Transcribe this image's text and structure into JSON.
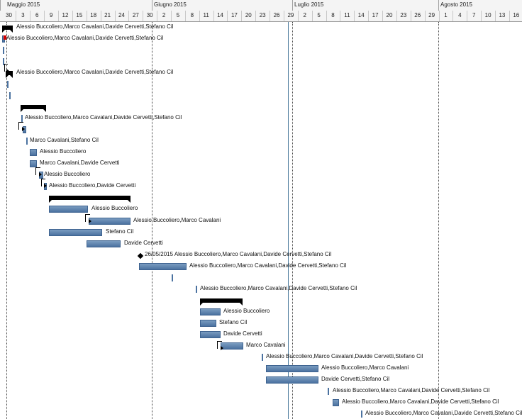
{
  "timeline": {
    "months": [
      "Maggio 2015",
      "Giugno 2015",
      "Luglio 2015",
      "Agosto 2015"
    ],
    "days": [
      "30",
      "3",
      "6",
      "9",
      "12",
      "15",
      "18",
      "21",
      "24",
      "27",
      "30",
      "2",
      "5",
      "8",
      "11",
      "14",
      "17",
      "20",
      "23",
      "26",
      "29",
      "2",
      "5",
      "8",
      "11",
      "14",
      "17",
      "20",
      "23",
      "26",
      "29",
      "1",
      "4",
      "7",
      "10",
      "13",
      "16"
    ]
  },
  "tasks": [
    {
      "kind": "summary",
      "resources": "Alessio Buccoliero,Marco Cavalani,Davide Cervetti,Stefano Cil"
    },
    {
      "kind": "bar",
      "marker": "red",
      "resources": "Alessio Buccoliero,Marco Cavalani,Davide Cervetti,Stefano Cil"
    },
    {
      "kind": "tick",
      "resources": ""
    },
    {
      "kind": "tick",
      "resources": ""
    },
    {
      "kind": "summary",
      "resources": "Alessio Buccoliero,Marco Cavalani,Davide Cervetti,Stefano Cil"
    },
    {
      "kind": "tick",
      "resources": ""
    },
    {
      "kind": "tick",
      "resources": ""
    },
    {
      "kind": "summary",
      "resources": ""
    },
    {
      "kind": "tick",
      "resources": "Alessio Buccoliero,Marco Cavalani,Davide Cervetti,Stefano Cil"
    },
    {
      "kind": "bar",
      "resources": ""
    },
    {
      "kind": "tick",
      "resources": "Marco Cavalani,Stefano Cil"
    },
    {
      "kind": "bar",
      "resources": "Alessio Buccoliero"
    },
    {
      "kind": "bar",
      "resources": "Marco Cavalani,Davide Cervetti"
    },
    {
      "kind": "bar",
      "resources": "Alessio Buccoliero"
    },
    {
      "kind": "bar",
      "resources": "Alessio Buccoliero,Davide Cervetti"
    },
    {
      "kind": "summary",
      "resources": ""
    },
    {
      "kind": "bar",
      "resources": "Alessio Buccoliero"
    },
    {
      "kind": "bar",
      "resources": "Alessio Buccoliero,Marco Cavalani"
    },
    {
      "kind": "bar",
      "resources": "Stefano Cil"
    },
    {
      "kind": "bar",
      "resources": "Davide Cervetti"
    },
    {
      "kind": "milestone",
      "resources": "26/05/2015 Alessio Buccoliero,Marco Cavalani,Davide Cervetti,Stefano Cil"
    },
    {
      "kind": "bar",
      "resources": "Alessio Buccoliero,Marco Cavalani,Davide Cervetti,Stefano Cil"
    },
    {
      "kind": "tick",
      "resources": ""
    },
    {
      "kind": "tick",
      "resources": "Alessio Buccoliero,Marco Cavalani,Davide Cervetti,Stefano Cil"
    },
    {
      "kind": "summary",
      "resources": ""
    },
    {
      "kind": "bar",
      "resources": "Alessio Buccoliero"
    },
    {
      "kind": "bar",
      "resources": "Stefano Cil"
    },
    {
      "kind": "bar",
      "resources": "Davide Cervetti"
    },
    {
      "kind": "bar",
      "resources": "Marco Cavalani"
    },
    {
      "kind": "tick",
      "resources": "Alessio Buccoliero,Marco Cavalani,Davide Cervetti,Stefano Cil"
    },
    {
      "kind": "bar",
      "resources": "Alessio Buccoliero,Marco Cavalani"
    },
    {
      "kind": "bar",
      "resources": "Davide Cervetti,Stefano Cil"
    },
    {
      "kind": "tick",
      "resources": "Alessio Buccoliero,Marco Cavalani,Davide Cervetti,Stefano Cil"
    },
    {
      "kind": "bar",
      "resources": "Alessio Buccoliero,Marco Cavalani,Davide Cervetti,Stefano Cil"
    },
    {
      "kind": "tick",
      "resources": "Alessio Buccoliero,Marco Cavalani,Davide Cervetti,Stefano Cil"
    }
  ]
}
